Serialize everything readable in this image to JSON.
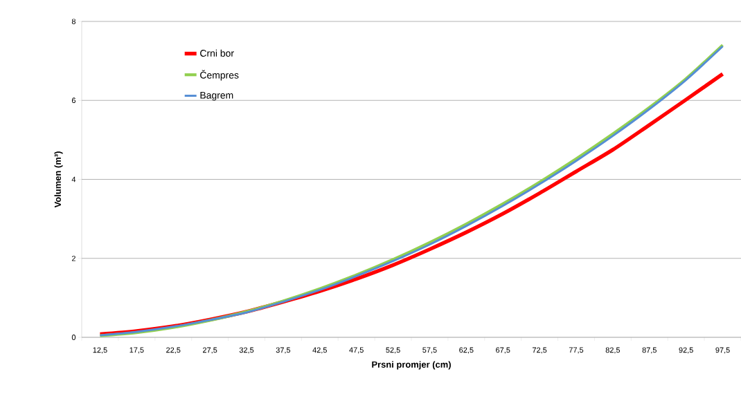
{
  "chart_data": {
    "type": "line",
    "xlabel": "Prsni promjer (cm)",
    "ylabel": "Volumen (m³)",
    "categories": [
      "12,5",
      "17,5",
      "22,5",
      "27,5",
      "32,5",
      "37,5",
      "42,5",
      "47,5",
      "52,5",
      "57,5",
      "62,5",
      "67,5",
      "72,5",
      "77,5",
      "82,5",
      "87,5",
      "92,5",
      "97,5"
    ],
    "series": [
      {
        "name": "Crni bor",
        "color": "#ff0000",
        "values": [
          0.08,
          0.16,
          0.28,
          0.45,
          0.65,
          0.9,
          1.17,
          1.48,
          1.83,
          2.23,
          2.66,
          3.13,
          3.65,
          4.2,
          4.75,
          5.38,
          6.02,
          6.67
        ]
      },
      {
        "name": "Čempres",
        "color": "#92d050",
        "values": [
          0.04,
          0.12,
          0.25,
          0.43,
          0.65,
          0.92,
          1.23,
          1.58,
          1.97,
          2.4,
          2.87,
          3.38,
          3.93,
          4.52,
          5.15,
          5.82,
          6.55,
          7.4
        ]
      },
      {
        "name": "Bagrem",
        "color": "#558ed5",
        "values": [
          0.05,
          0.14,
          0.27,
          0.44,
          0.63,
          0.9,
          1.2,
          1.55,
          1.93,
          2.35,
          2.82,
          3.33,
          3.88,
          4.47,
          5.1,
          5.78,
          6.52,
          7.37
        ]
      }
    ],
    "ylim": [
      0,
      8
    ],
    "yticks": [
      0,
      2,
      4,
      6,
      8
    ],
    "grid": "y",
    "legend": "top left",
    "marker": "none",
    "line_style": "solid"
  }
}
